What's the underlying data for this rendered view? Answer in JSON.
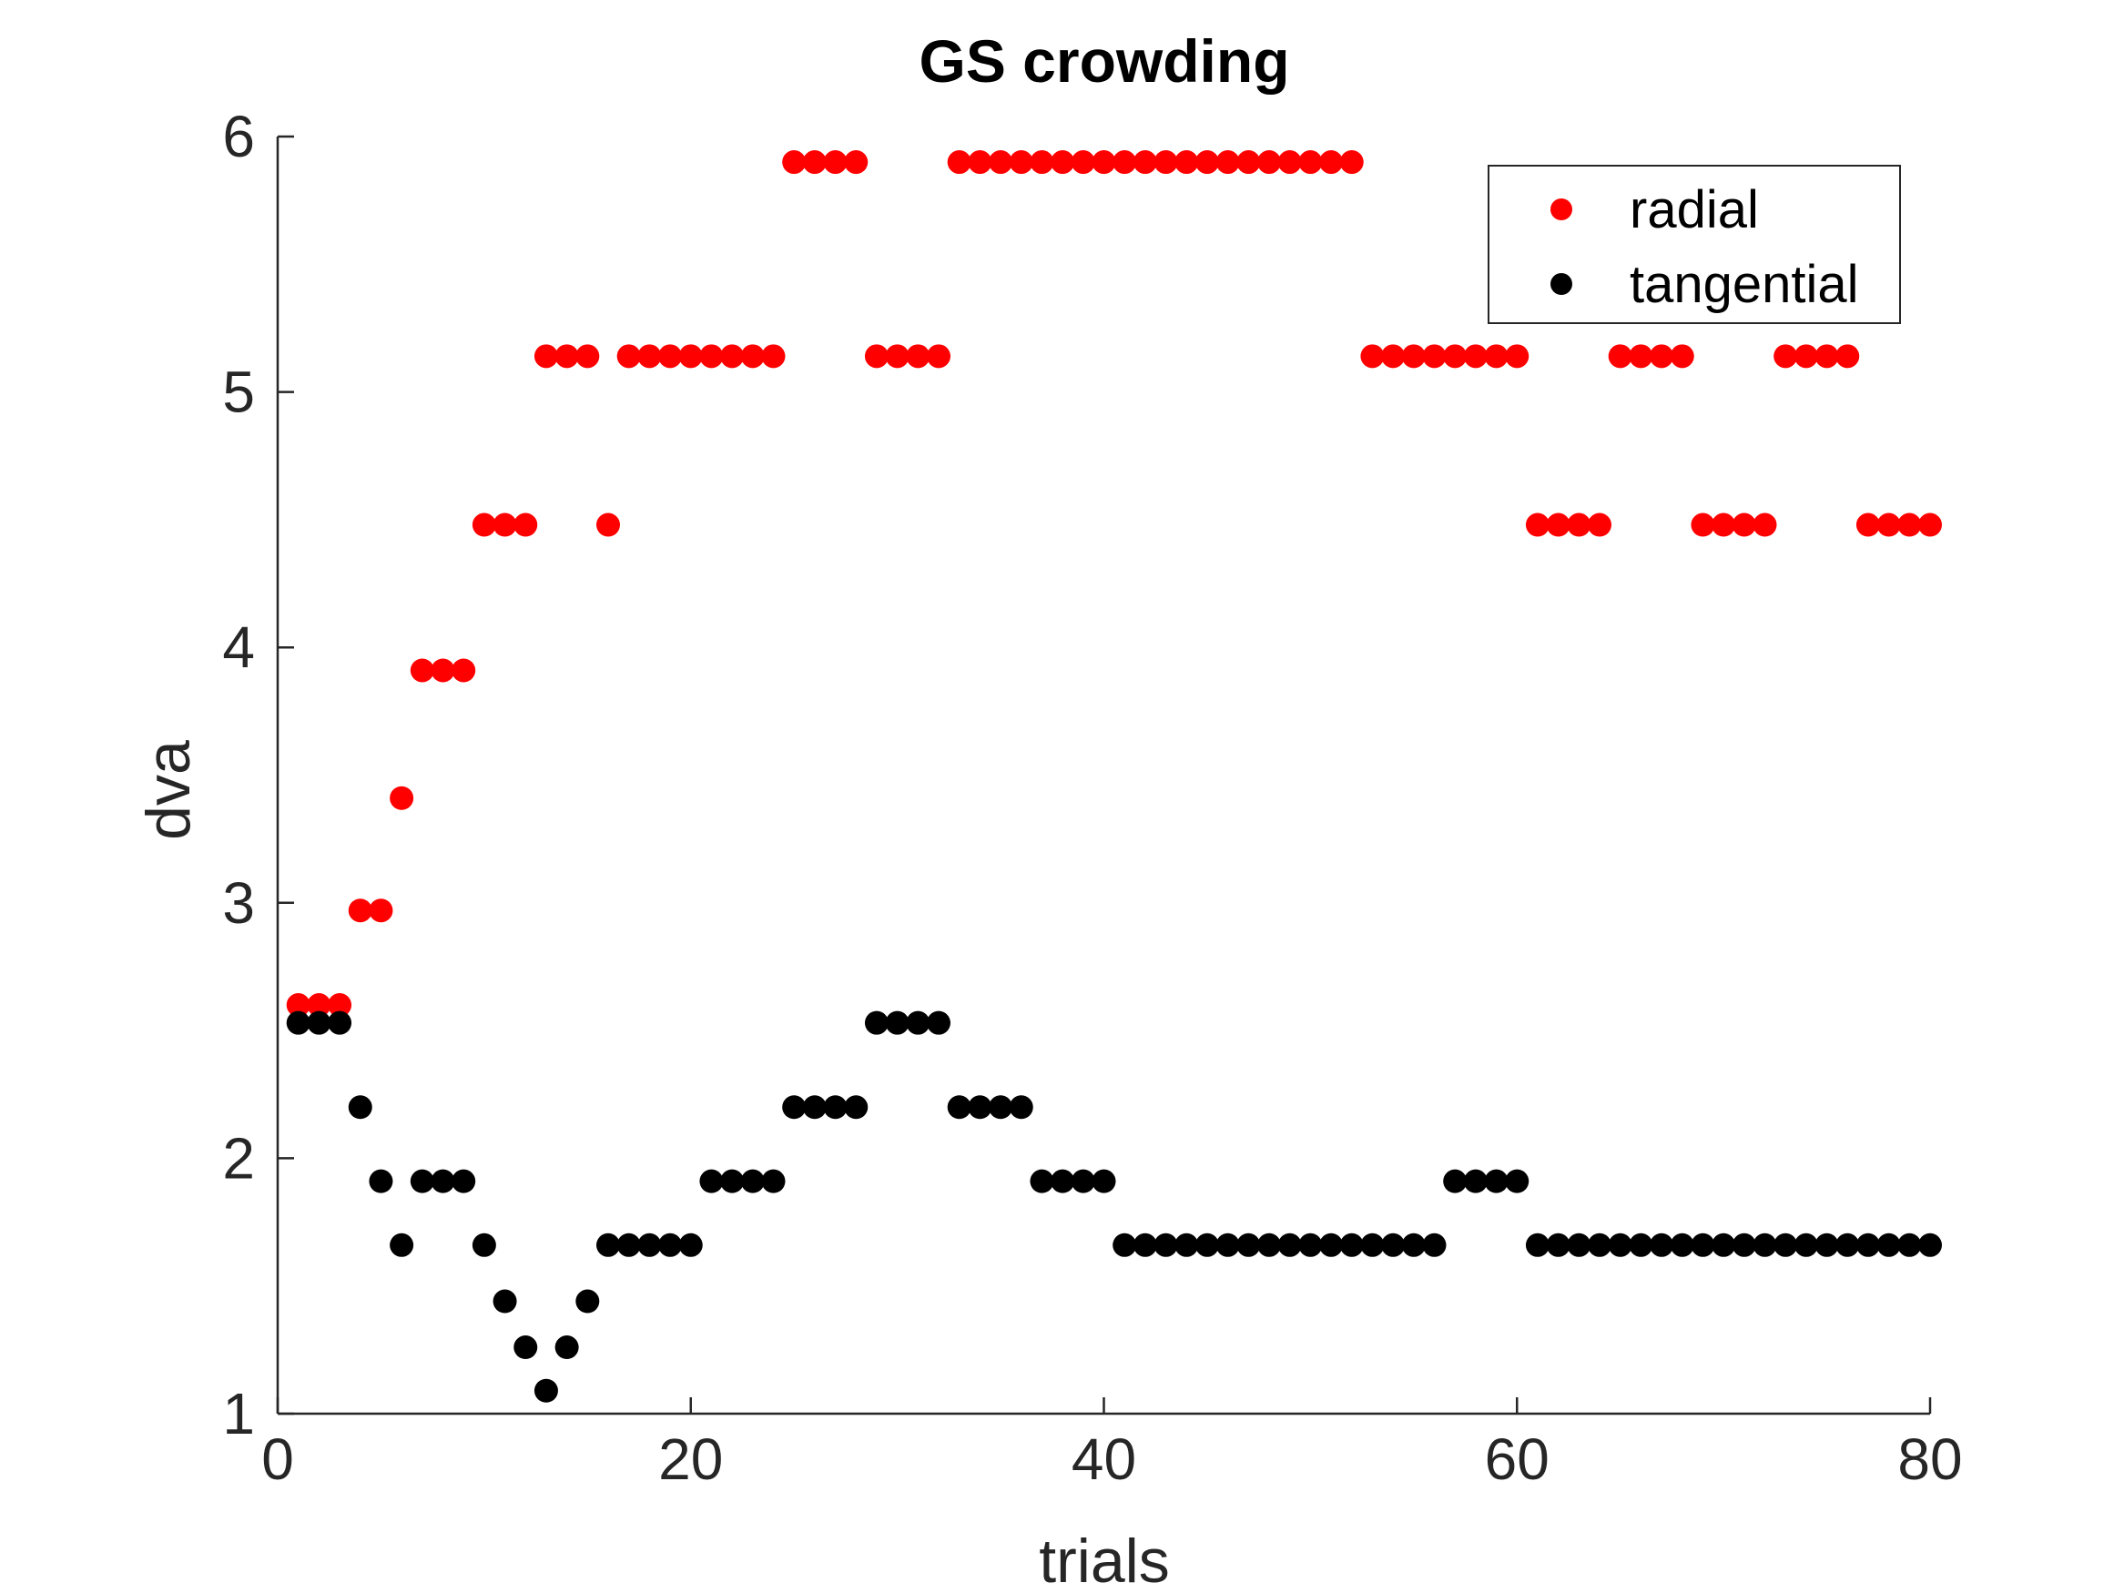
{
  "chart_data": {
    "type": "scatter",
    "title": "GS crowding",
    "xlabel": "trials",
    "ylabel": "dva",
    "xlim": [
      0,
      80
    ],
    "ylim": [
      1,
      6
    ],
    "xticks": [
      0,
      20,
      40,
      60,
      80
    ],
    "yticks": [
      1,
      2,
      3,
      4,
      5,
      6
    ],
    "grid": false,
    "legend_position": "top-right",
    "series": [
      {
        "name": "radial",
        "color": "#ff0000",
        "x": [
          1,
          2,
          3,
          4,
          5,
          6,
          7,
          8,
          9,
          10,
          11,
          12,
          13,
          14,
          15,
          16,
          17,
          18,
          19,
          20,
          21,
          22,
          23,
          24,
          25,
          26,
          27,
          28,
          29,
          30,
          31,
          32,
          33,
          34,
          35,
          36,
          37,
          38,
          39,
          40,
          41,
          42,
          43,
          44,
          45,
          46,
          47,
          48,
          49,
          50,
          51,
          52,
          53,
          54,
          55,
          56,
          57,
          58,
          59,
          60,
          61,
          62,
          63,
          64,
          65,
          66,
          67,
          68,
          69,
          70,
          71,
          72,
          73,
          74,
          75,
          76,
          77,
          78,
          79,
          80
        ],
        "y": [
          2.6,
          2.6,
          2.6,
          2.97,
          2.97,
          3.41,
          3.91,
          3.91,
          3.91,
          4.48,
          4.48,
          4.48,
          5.14,
          5.14,
          5.14,
          4.48,
          5.14,
          5.14,
          5.14,
          5.14,
          5.14,
          5.14,
          5.14,
          5.14,
          5.9,
          5.9,
          5.9,
          5.9,
          5.14,
          5.14,
          5.14,
          5.14,
          5.9,
          5.9,
          5.9,
          5.9,
          5.9,
          5.9,
          5.9,
          5.9,
          5.9,
          5.9,
          5.9,
          5.9,
          5.9,
          5.9,
          5.9,
          5.9,
          5.9,
          5.9,
          5.9,
          5.9,
          5.14,
          5.14,
          5.14,
          5.14,
          5.14,
          5.14,
          5.14,
          5.14,
          4.48,
          4.48,
          4.48,
          4.48,
          5.14,
          5.14,
          5.14,
          5.14,
          4.48,
          4.48,
          4.48,
          4.48,
          5.14,
          5.14,
          5.14,
          5.14,
          4.48,
          4.48,
          4.48,
          4.48
        ]
      },
      {
        "name": "tangential",
        "color": "#000000",
        "x": [
          1,
          2,
          3,
          4,
          5,
          6,
          7,
          8,
          9,
          10,
          11,
          12,
          13,
          14,
          15,
          16,
          17,
          18,
          19,
          20,
          21,
          22,
          23,
          24,
          25,
          26,
          27,
          28,
          29,
          30,
          31,
          32,
          33,
          34,
          35,
          36,
          37,
          38,
          39,
          40,
          41,
          42,
          43,
          44,
          45,
          46,
          47,
          48,
          49,
          50,
          51,
          52,
          53,
          54,
          55,
          56,
          57,
          58,
          59,
          60,
          61,
          62,
          63,
          64,
          65,
          66,
          67,
          68,
          69,
          70,
          71,
          72,
          73,
          74,
          75,
          76,
          77,
          78,
          79,
          80
        ],
        "y": [
          2.53,
          2.53,
          2.53,
          2.2,
          1.91,
          1.66,
          1.91,
          1.91,
          1.91,
          1.66,
          1.44,
          1.26,
          1.09,
          1.26,
          1.44,
          1.66,
          1.66,
          1.66,
          1.66,
          1.66,
          1.91,
          1.91,
          1.91,
          1.91,
          2.2,
          2.2,
          2.2,
          2.2,
          2.53,
          2.53,
          2.53,
          2.53,
          2.2,
          2.2,
          2.2,
          2.2,
          1.91,
          1.91,
          1.91,
          1.91,
          1.66,
          1.66,
          1.66,
          1.66,
          1.66,
          1.66,
          1.66,
          1.66,
          1.66,
          1.66,
          1.66,
          1.66,
          1.66,
          1.66,
          1.66,
          1.66,
          1.91,
          1.91,
          1.91,
          1.91,
          1.66,
          1.66,
          1.66,
          1.66,
          1.66,
          1.66,
          1.66,
          1.66,
          1.66,
          1.66,
          1.66,
          1.66,
          1.66,
          1.66,
          1.66,
          1.66,
          1.66,
          1.66,
          1.66,
          1.66
        ]
      }
    ]
  }
}
